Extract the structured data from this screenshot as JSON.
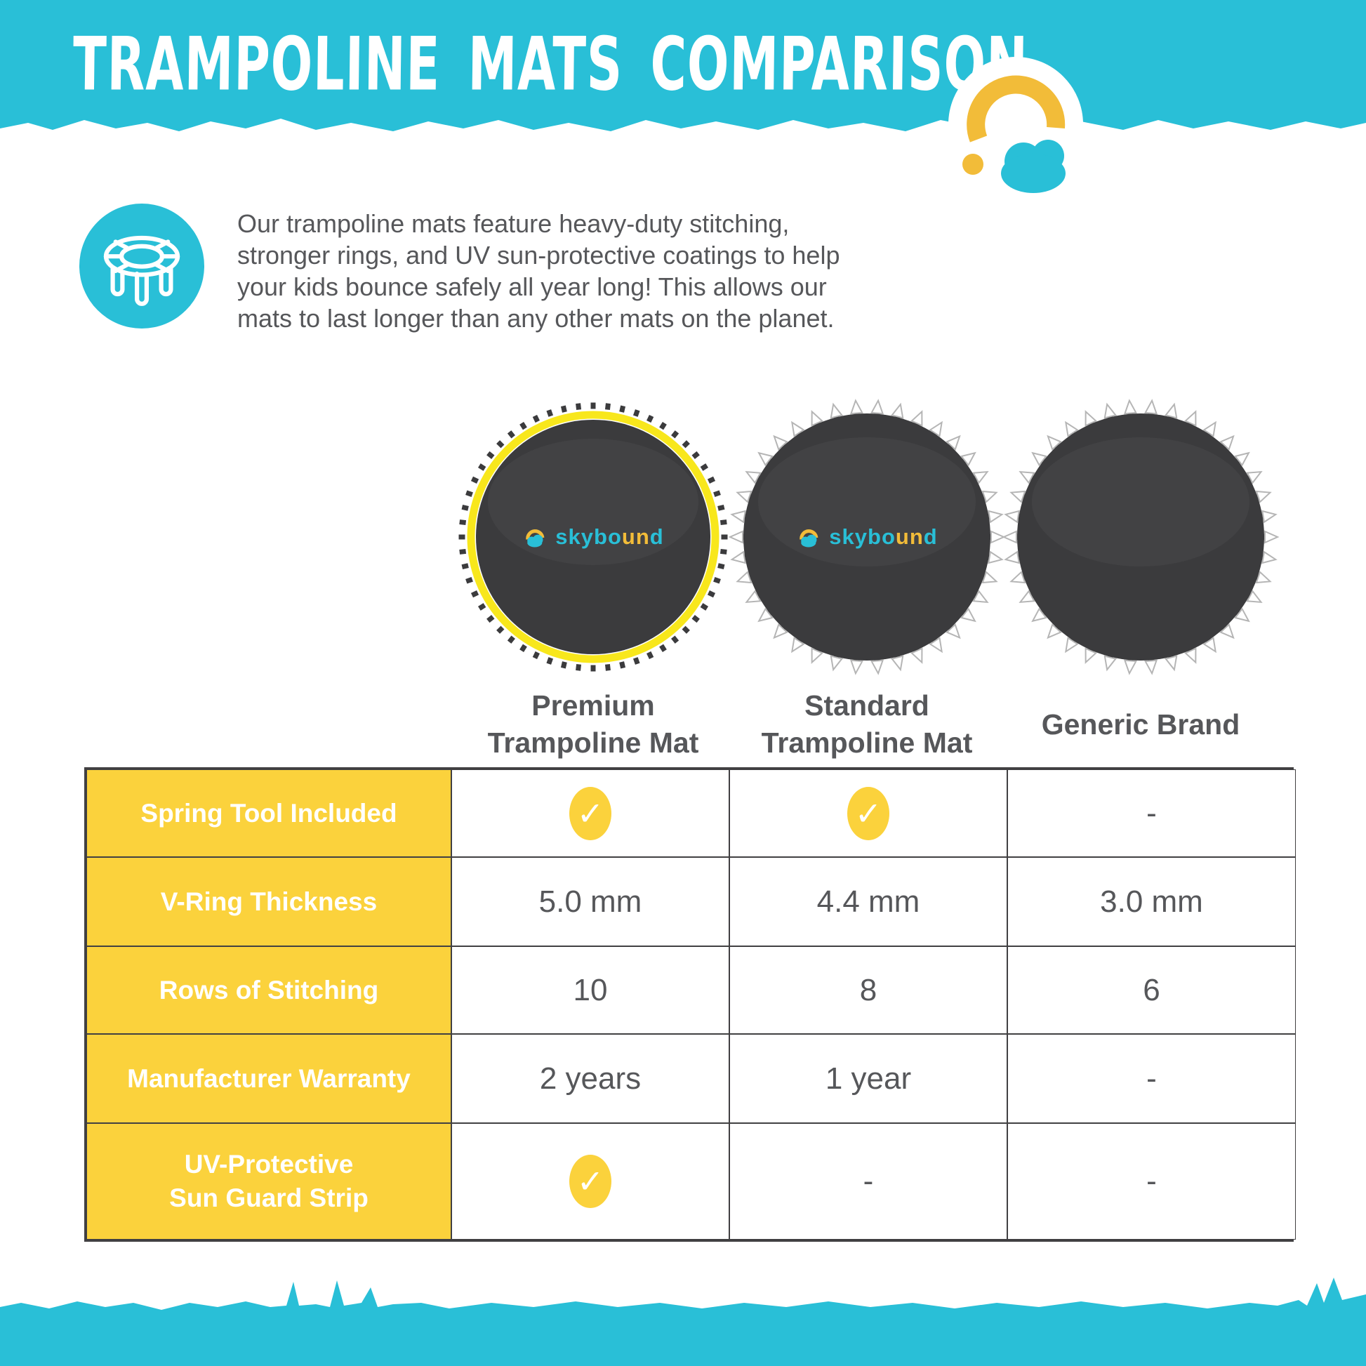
{
  "header": {
    "title": "TRAMPOLINE MATS COMPARISON"
  },
  "intro": {
    "lines": [
      "Our trampoline mats feature heavy-duty stitching,",
      "stronger rings, and UV sun-protective coatings to help",
      "your kids bounce safely all year long! This allows our",
      "mats to last longer than any other mats on the planet."
    ]
  },
  "brand": {
    "name": "skybound",
    "logo_parts": [
      {
        "text": "skybo",
        "color": "cyan"
      },
      {
        "text": "un",
        "color": "yellow"
      },
      {
        "text": "d",
        "color": "cyan"
      }
    ]
  },
  "products": [
    {
      "line1": "Premium",
      "line2": "Trampoline Mat"
    },
    {
      "line1": "Standard",
      "line2": "Trampoline Mat"
    },
    {
      "line1": "Generic Brand",
      "line2": ""
    }
  ],
  "table": {
    "check_glyph": "✓",
    "rows": [
      {
        "label_lines": [
          "Spring Tool Included"
        ],
        "values": [
          "check",
          "check",
          "-"
        ]
      },
      {
        "label_lines": [
          "V-Ring Thickness"
        ],
        "values": [
          "5.0 mm",
          "4.4 mm",
          "3.0 mm"
        ]
      },
      {
        "label_lines": [
          "Rows of Stitching"
        ],
        "values": [
          "10",
          "8",
          "6"
        ]
      },
      {
        "label_lines": [
          "Manufacturer Warranty"
        ],
        "values": [
          "2 years",
          "1 year",
          "-"
        ]
      },
      {
        "label_lines": [
          "UV-Protective",
          "Sun Guard Strip"
        ],
        "values": [
          "check",
          "-",
          "-"
        ]
      }
    ]
  },
  "colors": {
    "cyan": "#29BFD7",
    "brand_yellow": "#F2BC39",
    "table_yellow": "#FBD23C",
    "ring_yellow": "#F8E71C",
    "mat_dark": "#3B3B3D",
    "text_dark": "#56575A",
    "border_dark": "#414042"
  }
}
